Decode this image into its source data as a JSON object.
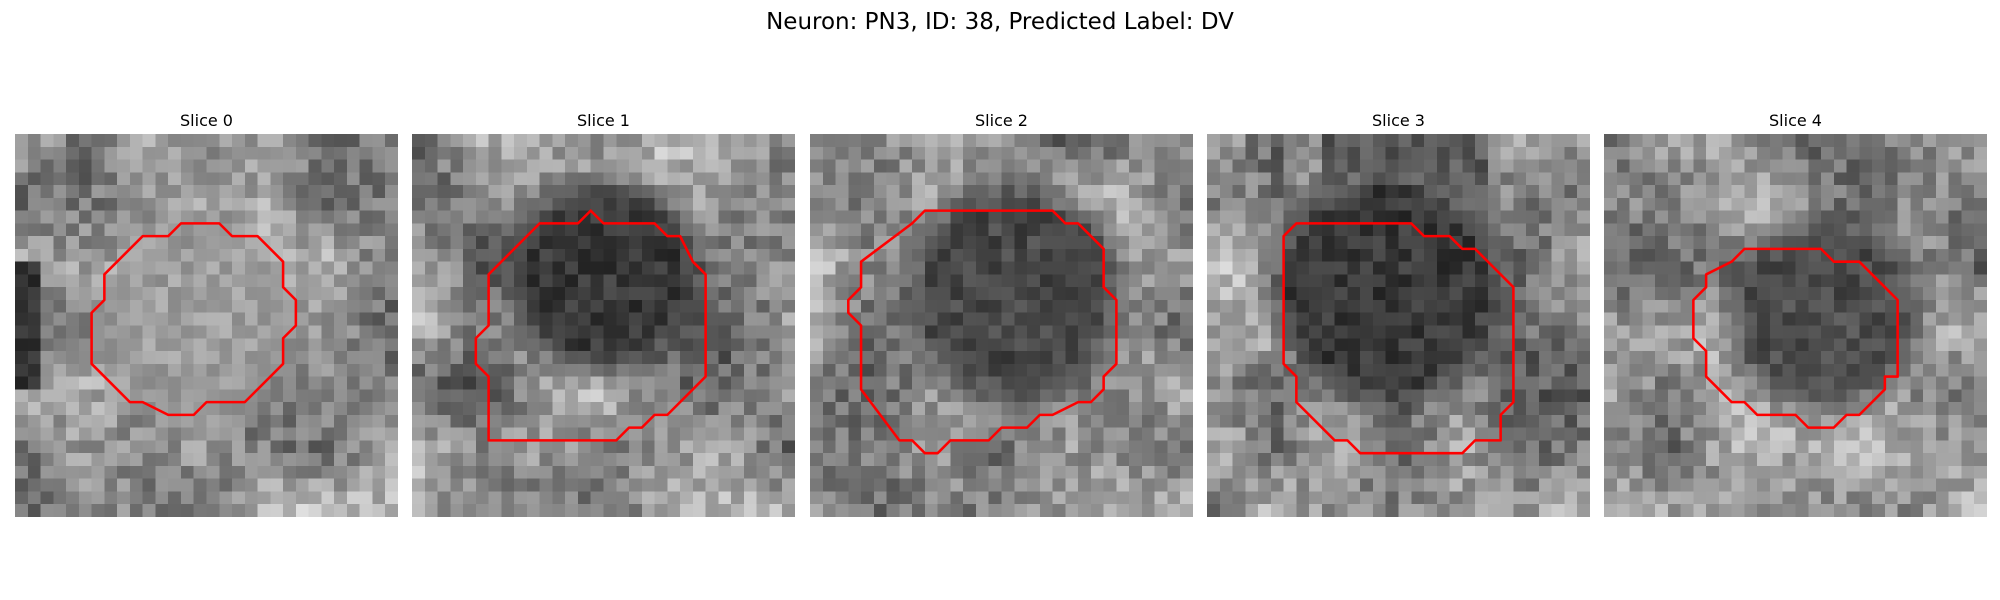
{
  "figure": {
    "title": "Neuron: PN3, ID: 38, Predicted Label: DV"
  },
  "panels": [
    {
      "title": "Slice 0",
      "contour_color": "#ff0000",
      "blob": {
        "cx": 15,
        "cy": 15,
        "r": 7.5,
        "level": 0.62
      }
    },
    {
      "title": "Slice 1",
      "contour_color": "#ff0000",
      "blob": {
        "cx": 15,
        "cy": 11,
        "r": 7.5,
        "level": 0.22
      }
    },
    {
      "title": "Slice 2",
      "contour_color": "#ff0000",
      "blob": {
        "cx": 16,
        "cy": 12.5,
        "r": 8.5,
        "level": 0.28
      }
    },
    {
      "title": "Slice 3",
      "contour_color": "#ff0000",
      "blob": {
        "cx": 14,
        "cy": 12,
        "r": 9,
        "level": 0.22
      }
    },
    {
      "title": "Slice 4",
      "contour_color": "#ff0000",
      "blob": {
        "cx": 17,
        "cy": 14,
        "r": 7.5,
        "level": 0.3
      }
    }
  ]
}
